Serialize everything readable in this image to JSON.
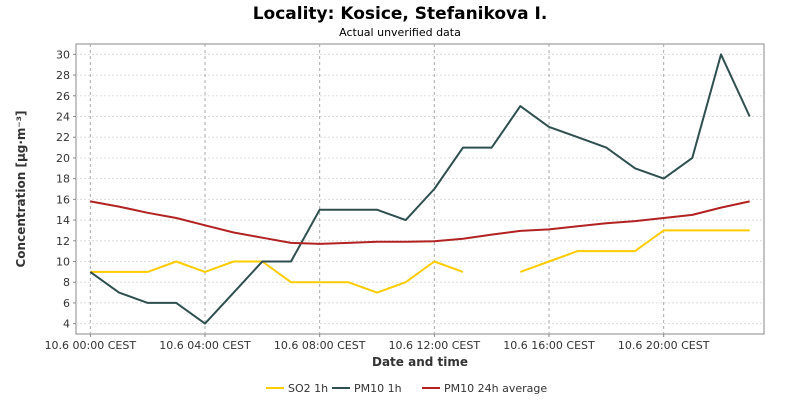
{
  "chart_data": {
    "type": "line",
    "title": "Locality: Kosice, Stefanikova I.",
    "subtitle": "Actual unverified data",
    "xlabel": "Date and time",
    "ylabel": "Concentration [µg·m⁻³]",
    "ylim": [
      3,
      31
    ],
    "y_ticks": [
      4,
      6,
      8,
      10,
      12,
      14,
      16,
      18,
      20,
      22,
      24,
      26,
      28,
      30
    ],
    "x_range": [
      -0.5,
      23.5
    ],
    "x_ticks": [
      {
        "hour": 0,
        "label": "10.6 00:00 CEST"
      },
      {
        "hour": 4,
        "label": "10.6 04:00 CEST"
      },
      {
        "hour": 8,
        "label": "10.6 08:00 CEST"
      },
      {
        "hour": 12,
        "label": "10.6 12:00 CEST"
      },
      {
        "hour": 16,
        "label": "10.6 16:00 CEST"
      },
      {
        "hour": 20,
        "label": "10.6 20:00 CEST"
      }
    ],
    "grid": true,
    "legend_position": "bottom",
    "series": [
      {
        "name": "SO2 1h",
        "color": "#ffcc00",
        "points": [
          [
            0,
            9
          ],
          [
            1,
            9
          ],
          [
            2,
            9
          ],
          [
            3,
            10
          ],
          [
            4,
            9
          ],
          [
            5,
            10
          ],
          [
            6,
            10
          ],
          [
            7,
            8
          ],
          [
            8,
            8
          ],
          [
            9,
            8
          ],
          [
            10,
            7
          ],
          [
            11,
            8
          ],
          [
            12,
            10
          ],
          [
            13,
            9
          ],
          null,
          [
            15,
            9
          ],
          [
            16,
            10
          ],
          [
            17,
            11
          ],
          [
            18,
            11
          ],
          [
            19,
            11
          ],
          [
            20,
            13
          ],
          [
            21,
            13
          ],
          [
            22,
            13
          ],
          [
            23,
            13
          ]
        ]
      },
      {
        "name": "PM10 1h",
        "color": "#2f4f4f",
        "points": [
          [
            0,
            9
          ],
          [
            1,
            7
          ],
          [
            2,
            6
          ],
          [
            3,
            6
          ],
          [
            4,
            4
          ],
          [
            5,
            7
          ],
          [
            6,
            10
          ],
          [
            7,
            10
          ],
          [
            8,
            15
          ],
          [
            9,
            15
          ],
          [
            10,
            15
          ],
          [
            11,
            14
          ],
          [
            12,
            17
          ],
          [
            13,
            21
          ],
          [
            14,
            21
          ],
          [
            15,
            25
          ],
          [
            16,
            23
          ],
          [
            17,
            22
          ],
          [
            18,
            21
          ],
          [
            19,
            19
          ],
          [
            20,
            18
          ],
          [
            21,
            20
          ],
          [
            22,
            30
          ],
          [
            23,
            24
          ]
        ]
      },
      {
        "name": "PM10 24h average",
        "color": "#b22222",
        "points": [
          [
            0,
            15.8
          ],
          [
            1,
            15.3
          ],
          [
            2,
            14.7
          ],
          [
            3,
            14.2
          ],
          [
            4,
            13.5
          ],
          [
            5,
            12.8
          ],
          [
            6,
            12.3
          ],
          [
            7,
            11.8
          ],
          [
            8,
            11.7
          ],
          [
            9,
            11.8
          ],
          [
            10,
            11.9
          ],
          [
            11,
            11.9
          ],
          [
            12,
            11.95
          ],
          [
            13,
            12.2
          ],
          [
            14,
            12.6
          ],
          [
            15,
            12.95
          ],
          [
            16,
            13.1
          ],
          [
            17,
            13.4
          ],
          [
            18,
            13.7
          ],
          [
            19,
            13.9
          ],
          [
            20,
            14.2
          ],
          [
            21,
            14.5
          ],
          [
            22,
            15.2
          ],
          [
            23,
            15.8
          ]
        ]
      }
    ]
  }
}
